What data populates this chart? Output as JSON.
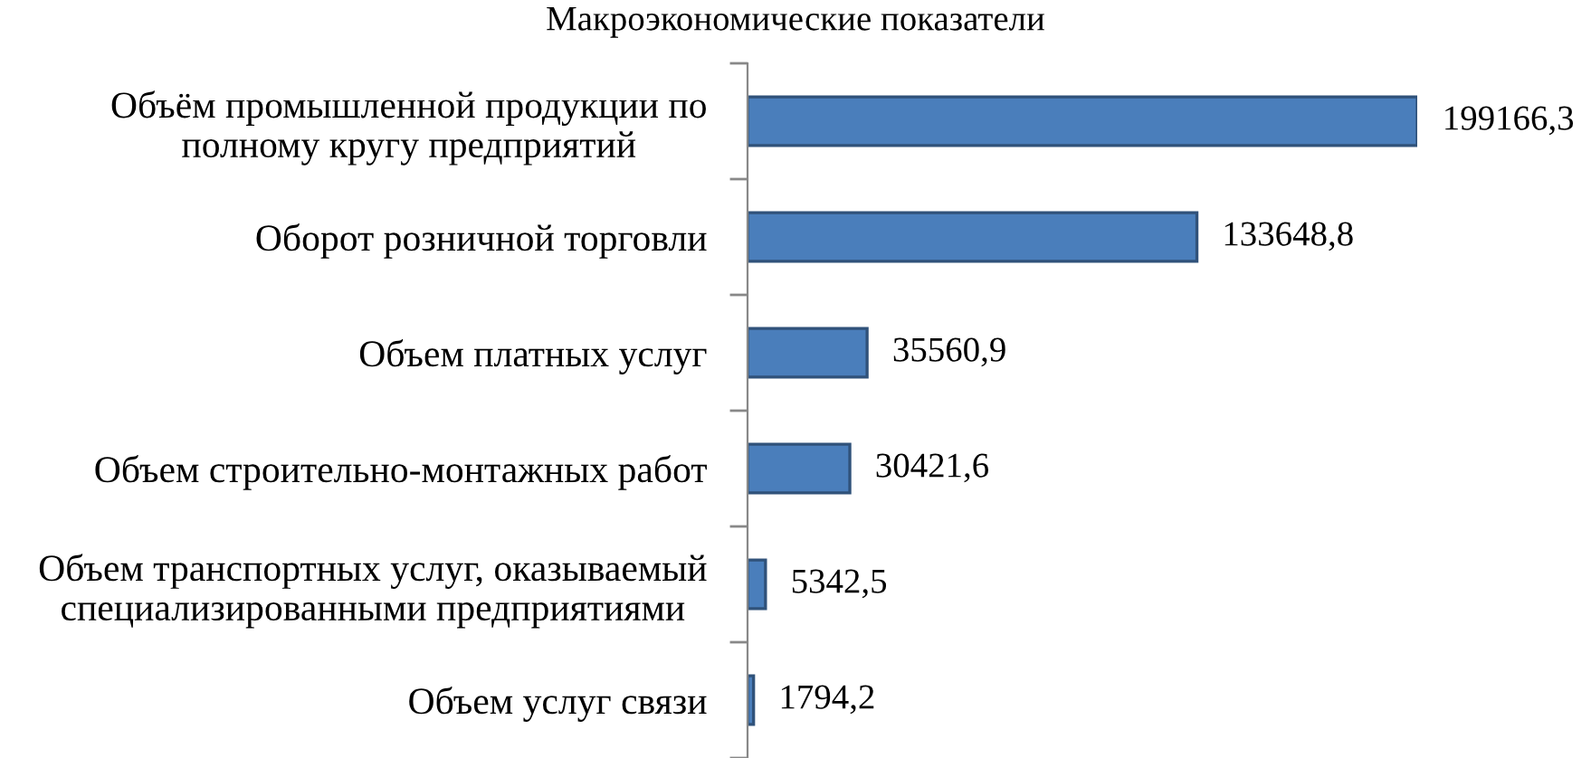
{
  "chart_data": {
    "type": "bar",
    "orientation": "horizontal",
    "title": "Макроэкономические показатели",
    "categories": [
      "Объём промышленной продукции по\nполному кругу предприятий",
      "Оборот розничной торговли",
      "Объем платных услуг",
      "Объем строительно-монтажных работ",
      "Объем транспортных услуг, оказываемый\nспециализированными предприятиями",
      "Объем услуг связи"
    ],
    "values": [
      199166.3,
      133648.8,
      35560.9,
      30421.6,
      5342.5,
      1794.2
    ],
    "value_labels": [
      "199166,3",
      "133648,8",
      "35560,9",
      "30421,6",
      "5342,5",
      "1794,2"
    ],
    "color": "#4a7ebb",
    "tick_labels": "y"
  }
}
